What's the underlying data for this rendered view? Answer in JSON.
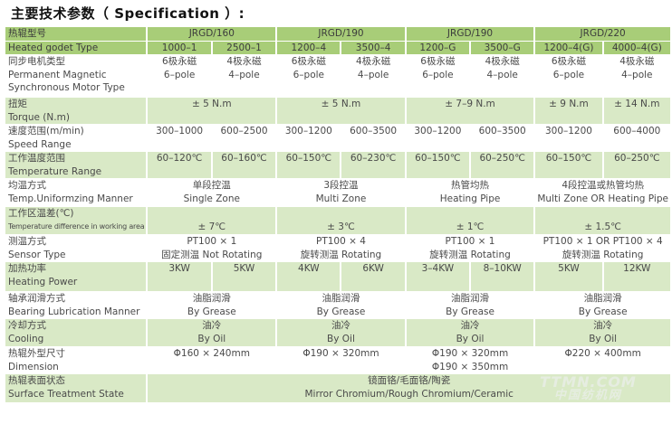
{
  "title": "主要技术参数（ Specification ）:",
  "colors": {
    "header_green": "#a8cd78",
    "row_green": "#d9e9c6",
    "text": "#4a4a4a"
  },
  "watermark": {
    "line1": "TTMN.COM",
    "line2": "中国纺机网"
  },
  "rows": [
    {
      "style": "hdr",
      "label": [
        "热辊型号"
      ],
      "cells": [
        {
          "span": 2,
          "lines": [
            "JRGD/160"
          ]
        },
        {
          "span": 2,
          "lines": [
            "JRGD/190"
          ]
        },
        {
          "span": 2,
          "lines": [
            "JRGD/190"
          ]
        },
        {
          "span": 2,
          "lines": [
            "JRGD/220"
          ]
        }
      ]
    },
    {
      "style": "hdr",
      "label": [
        "Heated godet Type"
      ],
      "cells": [
        {
          "span": 1,
          "lines": [
            "1000–1"
          ]
        },
        {
          "span": 1,
          "lines": [
            "2500–1"
          ]
        },
        {
          "span": 1,
          "lines": [
            "1200–4"
          ]
        },
        {
          "span": 1,
          "lines": [
            "3500–4"
          ]
        },
        {
          "span": 1,
          "lines": [
            "1200–G"
          ]
        },
        {
          "span": 1,
          "lines": [
            "3500–G"
          ]
        },
        {
          "span": 1,
          "lines": [
            "1200–4(G)"
          ]
        },
        {
          "span": 1,
          "lines": [
            "4000–4(G)"
          ]
        }
      ]
    },
    {
      "style": "w",
      "label": [
        "同步电机类型",
        "Permanent Magnetic",
        "Synchronous Motor Type"
      ],
      "cells": [
        {
          "span": 1,
          "lines": [
            "6极永磁",
            "6–pole"
          ]
        },
        {
          "span": 1,
          "lines": [
            "4极永磁",
            "4–pole"
          ]
        },
        {
          "span": 1,
          "lines": [
            "6极永磁",
            "6–pole"
          ]
        },
        {
          "span": 1,
          "lines": [
            "4极永磁",
            "4–pole"
          ]
        },
        {
          "span": 1,
          "lines": [
            "6极永磁",
            "6–pole"
          ]
        },
        {
          "span": 1,
          "lines": [
            "4极永磁",
            "4–pole"
          ]
        },
        {
          "span": 1,
          "lines": [
            "6极永磁",
            "6–pole"
          ]
        },
        {
          "span": 1,
          "lines": [
            "4极永磁",
            "4–pole"
          ]
        }
      ]
    },
    {
      "style": "g",
      "label": [
        "扭矩",
        "Torque (N.m)"
      ],
      "cells": [
        {
          "span": 2,
          "lines": [
            "± 5 N.m"
          ]
        },
        {
          "span": 2,
          "lines": [
            "± 5 N.m"
          ]
        },
        {
          "span": 2,
          "lines": [
            "± 7–9 N.m"
          ]
        },
        {
          "span": 1,
          "lines": [
            "± 9 N.m"
          ]
        },
        {
          "span": 1,
          "lines": [
            "± 14 N.m"
          ]
        }
      ]
    },
    {
      "style": "w",
      "label": [
        "速度范围(m/min)",
        "Speed Range"
      ],
      "cells": [
        {
          "span": 1,
          "lines": [
            "300–1000"
          ]
        },
        {
          "span": 1,
          "lines": [
            "600–2500"
          ]
        },
        {
          "span": 1,
          "lines": [
            "300–1200"
          ]
        },
        {
          "span": 1,
          "lines": [
            "600–3500"
          ]
        },
        {
          "span": 1,
          "lines": [
            "300–1200"
          ]
        },
        {
          "span": 1,
          "lines": [
            "600–3500"
          ]
        },
        {
          "span": 1,
          "lines": [
            "300–1200"
          ]
        },
        {
          "span": 1,
          "lines": [
            "600–4000"
          ]
        }
      ]
    },
    {
      "style": "g",
      "label": [
        "工作温度范围",
        "Temperature Range"
      ],
      "cells": [
        {
          "span": 1,
          "lines": [
            "60–120℃"
          ]
        },
        {
          "span": 1,
          "lines": [
            "60–160℃"
          ]
        },
        {
          "span": 1,
          "lines": [
            "60–150℃"
          ]
        },
        {
          "span": 1,
          "lines": [
            "60–230℃"
          ]
        },
        {
          "span": 1,
          "lines": [
            "60–150℃"
          ]
        },
        {
          "span": 1,
          "lines": [
            "60–250℃"
          ]
        },
        {
          "span": 1,
          "lines": [
            "60–150℃"
          ]
        },
        {
          "span": 1,
          "lines": [
            "60–250℃"
          ]
        }
      ]
    },
    {
      "style": "w",
      "label": [
        "均温方式",
        "Temp.Uniformzing Manner"
      ],
      "cells": [
        {
          "span": 2,
          "lines": [
            "单段控温",
            "Single Zone"
          ]
        },
        {
          "span": 2,
          "lines": [
            "3段控温",
            "Multi Zone"
          ]
        },
        {
          "span": 2,
          "lines": [
            "热管均热",
            "Heating Pipe"
          ]
        },
        {
          "span": 2,
          "lines": [
            "4段控温或热管均热",
            "Multi Zone OR Heating Pipe"
          ]
        }
      ]
    },
    {
      "style": "g",
      "label": [
        "工作区温差(℃)",
        "Temperature difference in working area"
      ],
      "cells": [
        {
          "span": 2,
          "lines": [
            "",
            "± 7℃"
          ]
        },
        {
          "span": 2,
          "lines": [
            "",
            "± 3℃"
          ]
        },
        {
          "span": 2,
          "lines": [
            "",
            "± 1℃"
          ]
        },
        {
          "span": 2,
          "lines": [
            "",
            "± 1.5℃"
          ]
        }
      ]
    },
    {
      "style": "w",
      "label": [
        "测温方式",
        "Sensor Type"
      ],
      "cells": [
        {
          "span": 2,
          "lines": [
            "PT100 × 1",
            "固定测温 Not Rotating"
          ]
        },
        {
          "span": 2,
          "lines": [
            "PT100 × 4",
            "旋转测温 Rotating"
          ]
        },
        {
          "span": 2,
          "lines": [
            "PT100 × 1",
            "旋转测温 Rotating"
          ]
        },
        {
          "span": 2,
          "lines": [
            "PT100 × 1  OR  PT100 × 4",
            "旋转测温 Rotating"
          ]
        }
      ]
    },
    {
      "style": "g",
      "label": [
        "加热功率",
        "Heating Power"
      ],
      "cells": [
        {
          "span": 1,
          "lines": [
            "3KW"
          ]
        },
        {
          "span": 1,
          "lines": [
            "5KW"
          ]
        },
        {
          "span": 1,
          "lines": [
            "4KW"
          ]
        },
        {
          "span": 1,
          "lines": [
            "6KW"
          ]
        },
        {
          "span": 1,
          "lines": [
            "3–4KW"
          ]
        },
        {
          "span": 1,
          "lines": [
            "8–10KW"
          ]
        },
        {
          "span": 1,
          "lines": [
            "5KW"
          ]
        },
        {
          "span": 1,
          "lines": [
            "12KW"
          ]
        }
      ]
    },
    {
      "style": "w",
      "label": [
        "轴承润滑方式",
        "Bearing Lubrication Manner"
      ],
      "cells": [
        {
          "span": 2,
          "lines": [
            "油脂润滑",
            "By Grease"
          ]
        },
        {
          "span": 2,
          "lines": [
            "油脂润滑",
            "By Grease"
          ]
        },
        {
          "span": 2,
          "lines": [
            "油脂润滑",
            "By Grease"
          ]
        },
        {
          "span": 2,
          "lines": [
            "油脂润滑",
            "By Grease"
          ]
        }
      ]
    },
    {
      "style": "g",
      "label": [
        "冷却方式",
        "Cooling"
      ],
      "cells": [
        {
          "span": 2,
          "lines": [
            "油冷",
            "By Oil"
          ]
        },
        {
          "span": 2,
          "lines": [
            "油冷",
            "By Oil"
          ]
        },
        {
          "span": 2,
          "lines": [
            "油冷",
            "By Oil"
          ]
        },
        {
          "span": 2,
          "lines": [
            "油冷",
            "By Oil"
          ]
        }
      ]
    },
    {
      "style": "w",
      "label": [
        "热辊外型尺寸",
        "Dimension"
      ],
      "cells": [
        {
          "span": 2,
          "lines": [
            "Φ160 × 240mm"
          ]
        },
        {
          "span": 2,
          "lines": [
            "Φ190 × 320mm"
          ]
        },
        {
          "span": 2,
          "lines": [
            "Φ190 × 320mm",
            "Φ190 × 350mm"
          ]
        },
        {
          "span": 2,
          "lines": [
            "Φ220 × 400mm"
          ]
        }
      ]
    },
    {
      "style": "g",
      "label": [
        "热辊表面状态",
        "Surface Treatment State"
      ],
      "cells": [
        {
          "span": 8,
          "lines": [
            "镜面铬/毛面铬/陶瓷",
            "Mirror Chromium/Rough Chromium/Ceramic"
          ]
        }
      ]
    }
  ]
}
